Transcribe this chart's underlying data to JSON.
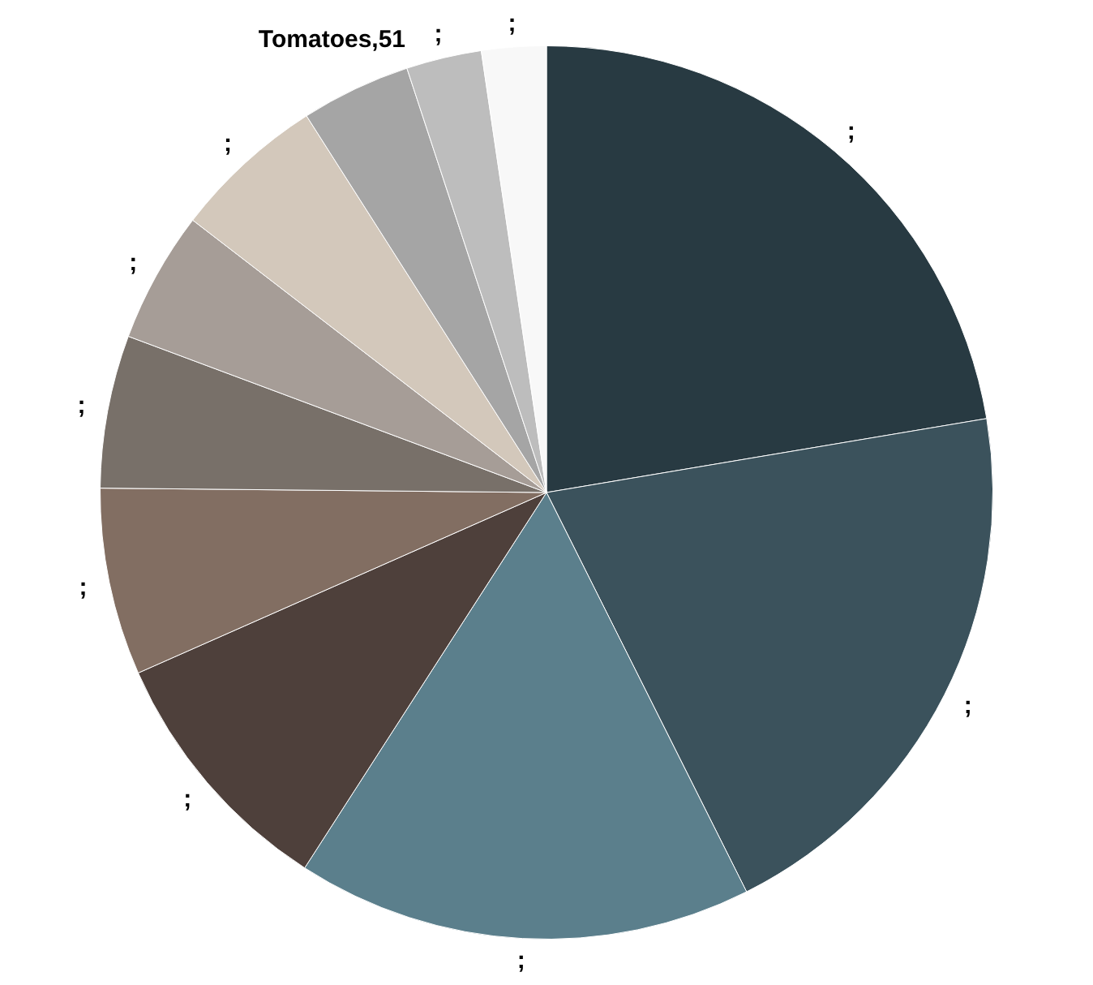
{
  "chart_data": {
    "type": "pie",
    "categories": [
      null,
      null,
      null,
      null,
      null,
      null,
      null,
      null,
      null,
      null,
      null
    ],
    "values": [
      287,
      260,
      212,
      119,
      87,
      71,
      61,
      71,
      51,
      35,
      30
    ],
    "colors": [
      "#283a42",
      "#3b525c",
      "#5b7f8c",
      "#4e403b",
      "#826e62",
      "#787069",
      "#a69d97",
      "#d3c8bb",
      "#a5a5a5",
      "#bdbdbd",
      "#f8f8f8"
    ],
    "value_labels": [
      ";",
      ";",
      ";",
      ";",
      ";",
      ";",
      ";",
      ";",
      "Tomatoes,51",
      ";",
      ";"
    ],
    "legend": false
  }
}
